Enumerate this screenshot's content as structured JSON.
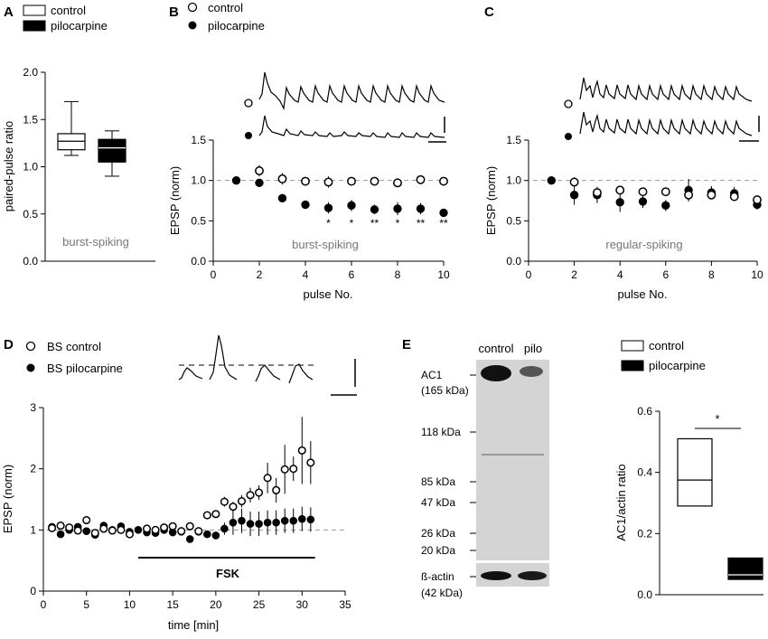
{
  "panels": {
    "A": {
      "label": "A",
      "legend": [
        "control",
        "pilocarpine"
      ],
      "ylabel": "paired-pulse ratio",
      "yticks": [
        "0.0",
        "0.5",
        "1.0",
        "1.5",
        "2.0"
      ],
      "note": "burst-spiking"
    },
    "B": {
      "label": "B",
      "legend": [
        "control",
        "pilocarpine"
      ],
      "ylabel": "EPSP (norm)",
      "xlabel": "pulse No.",
      "yticks": [
        "0.0",
        "0.5",
        "1.0",
        "1.5"
      ],
      "xticks": [
        "0",
        "2",
        "4",
        "6",
        "8",
        "10"
      ],
      "note": "burst-spiking",
      "sig": [
        "*",
        "*",
        "**",
        "*",
        "**",
        "**"
      ]
    },
    "C": {
      "label": "C",
      "ylabel": "EPSP (norm)",
      "xlabel": "pulse No.",
      "yticks": [
        "0.0",
        "0.5",
        "1.0",
        "1.5"
      ],
      "xticks": [
        "0",
        "2",
        "4",
        "6",
        "8",
        "10"
      ],
      "note": "regular-spiking"
    },
    "D": {
      "label": "D",
      "legend": [
        "BS control",
        "BS pilocarpine"
      ],
      "ylabel": "EPSP (norm)",
      "xlabel": "time [min]",
      "yticks": [
        "0",
        "1",
        "2",
        "3"
      ],
      "xticks": [
        "0",
        "5",
        "10",
        "15",
        "20",
        "25",
        "30",
        "35"
      ],
      "bar_label": "FSK"
    },
    "E": {
      "label": "E",
      "lanes": [
        "control",
        "pilo"
      ],
      "markers": [
        "AC1",
        "(165 kDa)",
        "118 kDa",
        "85 kDa",
        "47 kDa",
        "26 kDa",
        "20 kDa",
        "ß-actin",
        "(42 kDa)"
      ],
      "legend": [
        "control",
        "pilocarpine"
      ],
      "ylabel": "AC1/actin ratio",
      "yticks": [
        "0.0",
        "0.2",
        "0.4",
        "0.6"
      ],
      "sig": "*"
    }
  },
  "chart_data": [
    {
      "panel": "A",
      "type": "box",
      "ylabel": "paired-pulse ratio",
      "ylim": [
        0,
        2.0
      ],
      "categories": [
        "control",
        "pilocarpine"
      ],
      "boxes": [
        {
          "name": "control",
          "min": 1.12,
          "q1": 1.18,
          "median": 1.27,
          "q3": 1.35,
          "max": 1.69
        },
        {
          "name": "pilocarpine",
          "min": 0.9,
          "q1": 1.05,
          "median": 1.2,
          "q3": 1.29,
          "max": 1.38
        }
      ]
    },
    {
      "panel": "B",
      "type": "scatter",
      "title": "burst-spiking",
      "xlabel": "pulse No.",
      "ylabel": "EPSP (norm)",
      "xlim": [
        0,
        10
      ],
      "ylim": [
        0,
        1.5
      ],
      "reference_line": 1.0,
      "series": [
        {
          "name": "control",
          "x": [
            2,
            3,
            4,
            5,
            6,
            7,
            8,
            9,
            10
          ],
          "values": [
            1.12,
            1.02,
            0.99,
            0.98,
            0.99,
            0.99,
            0.97,
            1.01,
            0.99
          ],
          "errors": [
            0.07,
            0.07,
            0.05,
            0.07,
            0.05,
            0.05,
            0.04,
            0.05,
            0.04
          ]
        },
        {
          "name": "pilocarpine",
          "x": [
            1,
            2,
            3,
            4,
            5,
            6,
            7,
            8,
            9,
            10
          ],
          "values": [
            1.0,
            0.97,
            0.78,
            0.7,
            0.66,
            0.69,
            0.64,
            0.65,
            0.65,
            0.6
          ],
          "errors": [
            0,
            0.05,
            0.05,
            0.04,
            0.07,
            0.07,
            0.06,
            0.08,
            0.07,
            0.04
          ]
        }
      ],
      "significance": [
        {
          "x": 5,
          "mark": "*"
        },
        {
          "x": 6,
          "mark": "*"
        },
        {
          "x": 7,
          "mark": "**"
        },
        {
          "x": 8,
          "mark": "*"
        },
        {
          "x": 9,
          "mark": "**"
        },
        {
          "x": 10,
          "mark": "**"
        }
      ]
    },
    {
      "panel": "C",
      "type": "scatter",
      "title": "regular-spiking",
      "xlabel": "pulse No.",
      "ylabel": "EPSP (norm)",
      "xlim": [
        0,
        10
      ],
      "ylim": [
        0,
        1.5
      ],
      "reference_line": 1.0,
      "series": [
        {
          "name": "control",
          "x": [
            2,
            3,
            4,
            5,
            6,
            7,
            8,
            9,
            10
          ],
          "values": [
            0.98,
            0.85,
            0.88,
            0.86,
            0.86,
            0.82,
            0.82,
            0.8,
            0.76
          ],
          "errors": [
            0.06,
            0.05,
            0.05,
            0.05,
            0.05,
            0.06,
            0.05,
            0.05,
            0.05
          ]
        },
        {
          "name": "pilocarpine",
          "x": [
            1,
            2,
            3,
            4,
            5,
            6,
            7,
            8,
            9,
            10
          ],
          "values": [
            1.0,
            0.82,
            0.82,
            0.73,
            0.74,
            0.69,
            0.88,
            0.85,
            0.84,
            0.7
          ],
          "errors": [
            0,
            0.12,
            0.1,
            0.12,
            0.08,
            0.07,
            0.14,
            0.08,
            0.08,
            0.06
          ]
        }
      ]
    },
    {
      "panel": "D",
      "type": "scatter",
      "xlabel": "time [min]",
      "ylabel": "EPSP (norm)",
      "xlim": [
        0,
        35
      ],
      "ylim": [
        0,
        3
      ],
      "reference_line": 1.0,
      "drug_bar": {
        "label": "FSK",
        "start": 11,
        "end": 31.5
      },
      "series": [
        {
          "name": "BS control",
          "x": [
            1,
            2,
            3,
            4,
            5,
            6,
            7,
            8,
            9,
            10,
            12,
            13,
            14,
            15,
            16,
            17,
            18,
            19,
            20,
            21,
            22,
            23,
            24,
            25,
            26,
            27,
            28,
            29,
            30,
            31
          ],
          "values": [
            1.03,
            1.07,
            1.04,
            0.99,
            1.16,
            0.95,
            1.02,
            0.99,
            1.0,
            0.93,
            1.02,
            1.0,
            1.04,
            1.06,
            0.98,
            1.06,
            0.98,
            1.24,
            1.26,
            1.46,
            1.38,
            1.47,
            1.57,
            1.61,
            1.85,
            1.65,
            1.99,
            2.0,
            2.3,
            2.1
          ],
          "errors": [
            0.03,
            0.03,
            0.03,
            0.03,
            0.03,
            0.03,
            0.03,
            0.03,
            0.03,
            0.03,
            0.03,
            0.03,
            0.03,
            0.03,
            0.03,
            0.03,
            0.03,
            0.05,
            0.06,
            0.08,
            0.08,
            0.1,
            0.12,
            0.12,
            0.25,
            0.2,
            0.4,
            0.2,
            0.55,
            0.35
          ]
        },
        {
          "name": "BS pilocarpine",
          "x": [
            1,
            2,
            3,
            4,
            5,
            6,
            7,
            8,
            9,
            10,
            11,
            12,
            13,
            14,
            15,
            16,
            17,
            18,
            19,
            20,
            21,
            22,
            23,
            24,
            25,
            26,
            27,
            28,
            29,
            30,
            31
          ],
          "values": [
            1.05,
            0.93,
            1.0,
            1.05,
            0.98,
            0.92,
            1.07,
            1.0,
            1.06,
            0.97,
            1.0,
            0.96,
            0.95,
            1.0,
            0.96,
            0.97,
            0.85,
            0.97,
            0.93,
            0.91,
            1.02,
            1.12,
            1.15,
            1.1,
            1.1,
            1.12,
            1.12,
            1.15,
            1.15,
            1.18,
            1.17
          ],
          "errors": [
            0.05,
            0.06,
            0.04,
            0.04,
            0.04,
            0.05,
            0.04,
            0.04,
            0.04,
            0.04,
            0.04,
            0.04,
            0.04,
            0.04,
            0.04,
            0.04,
            0.04,
            0.04,
            0.04,
            0.04,
            0.1,
            0.2,
            0.2,
            0.2,
            0.2,
            0.2,
            0.2,
            0.2,
            0.2,
            0.2,
            0.2
          ]
        }
      ]
    },
    {
      "panel": "E",
      "type": "box",
      "ylabel": "AC1/actin ratio",
      "ylim": [
        0,
        0.6
      ],
      "categories": [
        "control",
        "pilocarpine"
      ],
      "boxes": [
        {
          "name": "control",
          "q1": 0.29,
          "median": 0.375,
          "q3": 0.51
        },
        {
          "name": "pilocarpine",
          "q1": 0.05,
          "median": 0.065,
          "q3": 0.12
        }
      ],
      "significance": "*"
    }
  ]
}
